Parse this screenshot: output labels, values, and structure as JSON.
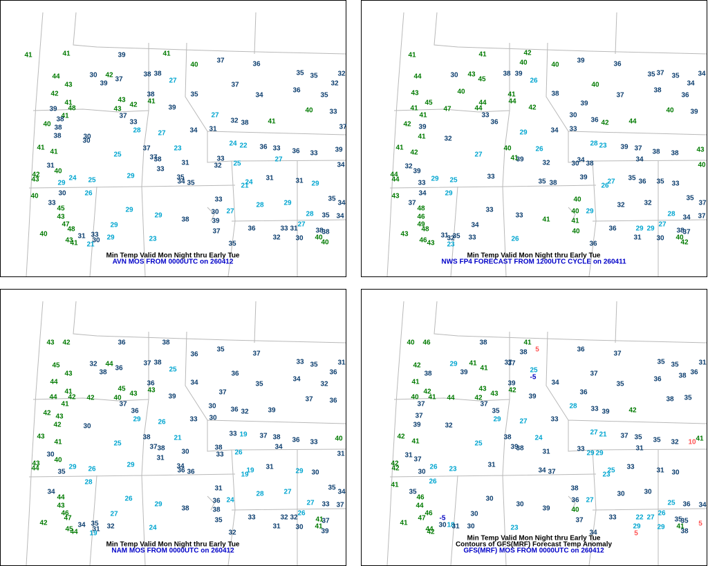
{
  "panels": [
    {
      "caption_lines": [
        "Min Temp Valid Mon Night thru Early Tue",
        "AVN MOS FROM 0000UTC on 260412"
      ],
      "stations": [
        41,
        41,
        39,
        41,
        40,
        37,
        36,
        35,
        35,
        32,
        44,
        30,
        42,
        37,
        38,
        38,
        27,
        37,
        32,
        43,
        39,
        42,
        38,
        35,
        34,
        36,
        35,
        41,
        43,
        42,
        41,
        39,
        48,
        39,
        43,
        27,
        40,
        33,
        41,
        38,
        37,
        33,
        32,
        38,
        41,
        40,
        38,
        28,
        34,
        31,
        37,
        38,
        30,
        30,
        27,
        24,
        22,
        36,
        33,
        36,
        33,
        39,
        41,
        41,
        25,
        37,
        23,
        37,
        38,
        31,
        33,
        34,
        31,
        33,
        32,
        25,
        27,
        40,
        42,
        43,
        24,
        25,
        29,
        34,
        35,
        35,
        31,
        31,
        24,
        29,
        21,
        29,
        30,
        26,
        33,
        40,
        33,
        45,
        29,
        30,
        27,
        28,
        29,
        35,
        34,
        43,
        29,
        38,
        39,
        28,
        35,
        34,
        47,
        29,
        37,
        36,
        27,
        33,
        31,
        38,
        38,
        48,
        40,
        31,
        33,
        30,
        23,
        29,
        32,
        30,
        40,
        40,
        43,
        41,
        21,
        35
      ]
    },
    {
      "caption_lines": [
        "Min Temp Valid Mon Night thru Early Tue",
        "NWS FP4 FORECAST FROM 1200UTC CYCLE on 260411"
      ],
      "stations": [
        41,
        41,
        42,
        40,
        40,
        39,
        36,
        37,
        35,
        34,
        44,
        30,
        43,
        45,
        38,
        39,
        26,
        40,
        35,
        34,
        43,
        40,
        41,
        38,
        37,
        38,
        36,
        45,
        44,
        44,
        42,
        41,
        47,
        44,
        39,
        40,
        39,
        41,
        33,
        36,
        30,
        36,
        42,
        44,
        42,
        39,
        34,
        33,
        41,
        32,
        29,
        28,
        23,
        39,
        37,
        38,
        38,
        43,
        41,
        42,
        27,
        40,
        26,
        41,
        39,
        32,
        34,
        40,
        32,
        38,
        30,
        34,
        39,
        44,
        44,
        29,
        25,
        33,
        35,
        38,
        39,
        35,
        35,
        27,
        33,
        26,
        36,
        33,
        34,
        29,
        40,
        43,
        37,
        48,
        33,
        40,
        29,
        32,
        32,
        35,
        37,
        46,
        33,
        41,
        41,
        28,
        34,
        37,
        49,
        34,
        40,
        36,
        27,
        29,
        29,
        38,
        37,
        48,
        43,
        31,
        35,
        32,
        26,
        33,
        31,
        30,
        40,
        42,
        46,
        43,
        23,
        36
      ]
    },
    {
      "caption_lines": [
        "Min Temp Valid Mon Night thru Early Tue",
        "NAM MOS FROM 0000UTC on 260412"
      ],
      "stations": [
        43,
        42,
        36,
        38,
        36,
        35,
        37,
        33,
        35,
        31,
        45,
        32,
        44,
        36,
        37,
        38,
        25,
        36,
        36,
        43,
        38,
        44,
        36,
        34,
        35,
        34,
        32,
        41,
        45,
        43,
        43,
        44,
        42,
        42,
        39,
        40,
        37,
        37,
        36,
        41,
        37,
        36,
        30,
        36,
        32,
        39,
        42,
        43,
        29,
        33,
        30,
        42,
        30,
        26,
        33,
        19,
        37,
        38,
        36,
        33,
        40,
        43,
        41,
        25,
        38,
        21,
        37,
        38,
        30,
        38,
        31,
        30,
        31,
        33,
        26,
        34,
        40,
        43,
        44,
        29,
        26,
        29,
        36,
        36,
        34,
        31,
        29,
        19,
        30,
        19,
        35,
        28,
        31,
        34,
        44,
        26,
        36,
        24,
        28,
        27,
        35,
        34,
        43,
        29,
        38,
        38,
        27,
        33,
        37,
        46,
        27,
        35,
        33,
        26,
        32,
        32,
        41,
        37,
        47,
        42,
        34,
        35,
        31,
        24,
        32,
        31,
        30,
        41,
        39,
        45,
        44,
        19,
        32
      ]
    },
    {
      "caption_lines": [
        "Min Temp Valid Mon Night thru Early Tue",
        "Contours of GFS(MRF) Forecast Temp Anomaly",
        "GFS(MRF) MOS FROM 0000UTC on 260412"
      ],
      "contour_labels": [
        5,
        -5,
        10,
        -5,
        5,
        5
      ],
      "stations": [
        40,
        46,
        38,
        41,
        38,
        36,
        37,
        35,
        35,
        31,
        42,
        29,
        41,
        41,
        37,
        37,
        25,
        37,
        38,
        36,
        38,
        39,
        41,
        39,
        34,
        35,
        36,
        42,
        43,
        43,
        42,
        40,
        41,
        44,
        39,
        42,
        36,
        38,
        35,
        37,
        37,
        35,
        28,
        33,
        39,
        42,
        37,
        29,
        33,
        39,
        32,
        27,
        27,
        21,
        37,
        35,
        35,
        32,
        41,
        42,
        41,
        25,
        38,
        24,
        39,
        38,
        31,
        33,
        29,
        29,
        31,
        31,
        37,
        42,
        42,
        26,
        23,
        31,
        34,
        37,
        33,
        31,
        25,
        30,
        23,
        30,
        26,
        38,
        41,
        35,
        46,
        30,
        36,
        27,
        30,
        30,
        25,
        36,
        34,
        44,
        30,
        39,
        40,
        46,
        30,
        37,
        33,
        22,
        27,
        26,
        35,
        35,
        47,
        41,
        30,
        18,
        31,
        23,
        29,
        29,
        41,
        38,
        44,
        42,
        30,
        34
      ]
    }
  ]
}
